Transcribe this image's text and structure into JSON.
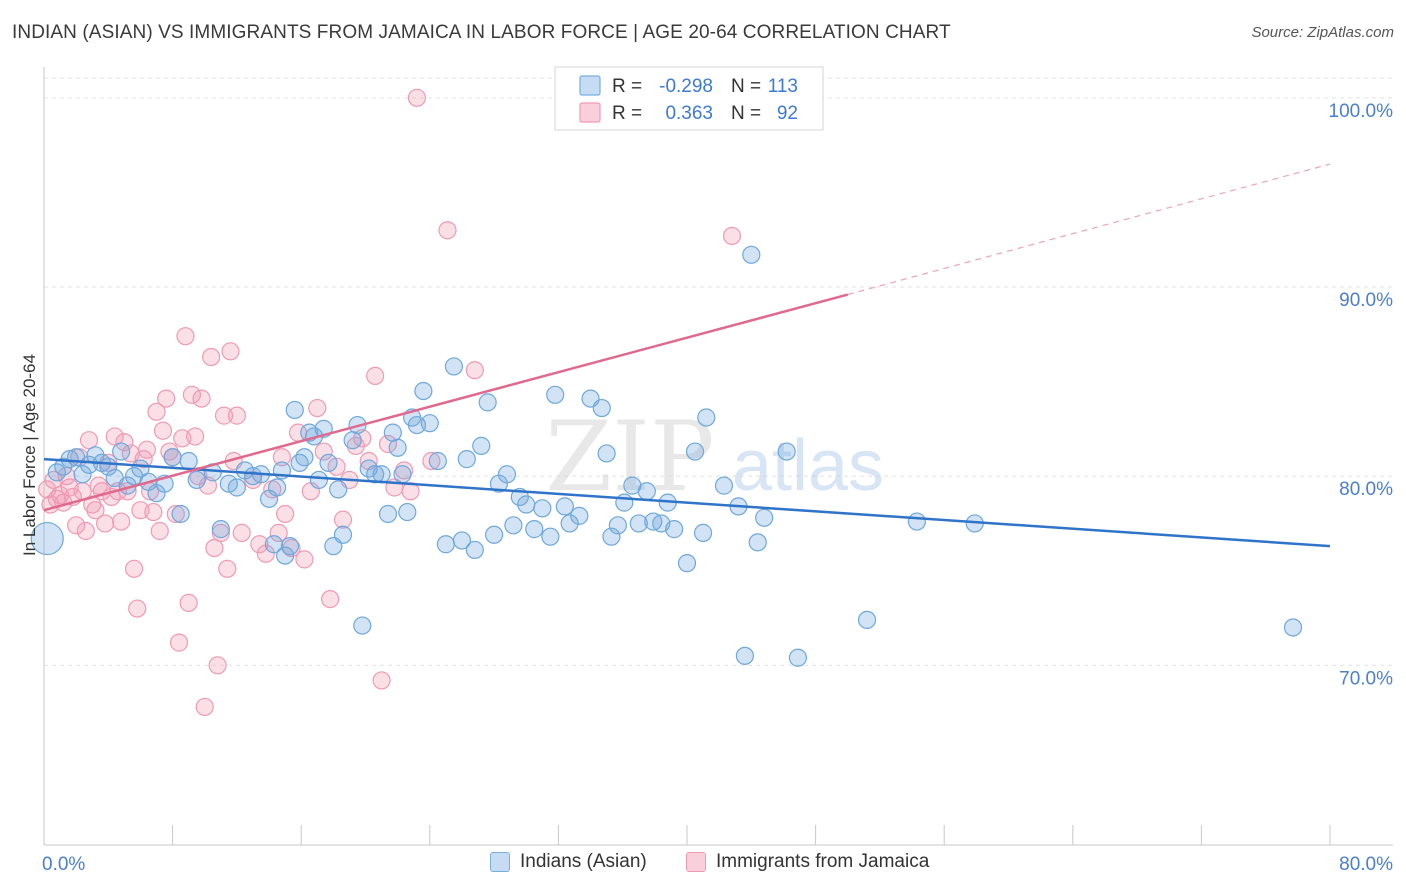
{
  "header": {
    "title": "INDIAN (ASIAN) VS IMMIGRANTS FROM JAMAICA IN LABOR FORCE | AGE 20-64 CORRELATION CHART",
    "source": "Source: ZipAtlas.com"
  },
  "watermark": {
    "zip": "ZIP",
    "atlas": "atlas"
  },
  "legend_top": [
    {
      "r_label": "R =",
      "r_value": "-0.298",
      "n_label": "N =",
      "n_value": "113"
    },
    {
      "r_label": "R =",
      "r_value": "0.363",
      "n_label": "N =",
      "n_value": "92"
    }
  ],
  "chart_data": {
    "type": "scatter",
    "title": "INDIAN (ASIAN) VS IMMIGRANTS FROM JAMAICA IN LABOR FORCE | AGE 20-64 CORRELATION CHART",
    "xlabel": "",
    "ylabel": "In Labor Force | Age 20-64",
    "xlim": [
      0,
      80
    ],
    "ylim": [
      60.5,
      102
    ],
    "x_tick_labels": [
      "0.0%",
      "80.0%"
    ],
    "y_ticks": [
      70,
      80,
      90,
      100
    ],
    "y_tick_labels": [
      "70.0%",
      "80.0%",
      "90.0%",
      "100.0%"
    ],
    "grid": true,
    "legend_position": "top-center",
    "colors": {
      "blue": "#6fa8dc",
      "blue_line": "#2f74c9",
      "pink": "#f09ab4",
      "pink_line": "#e0698f",
      "tick_text": "#4a7fcf"
    },
    "series": [
      {
        "name": "Indians (Asian)",
        "color": "#6fa8dc",
        "trend": {
          "x0": 0,
          "y0": 80.9,
          "x1": 80,
          "y1": 76.3
        },
        "points": [
          [
            0.2,
            76.7
          ],
          [
            0.8,
            80.2
          ],
          [
            1.2,
            80.5
          ],
          [
            1.6,
            80.9
          ],
          [
            2.0,
            81.0
          ],
          [
            2.4,
            80.1
          ],
          [
            2.8,
            80.6
          ],
          [
            3.2,
            81.1
          ],
          [
            3.6,
            80.7
          ],
          [
            4.0,
            80.5
          ],
          [
            4.4,
            79.9
          ],
          [
            4.8,
            81.3
          ],
          [
            5.2,
            79.5
          ],
          [
            5.6,
            80.0
          ],
          [
            6.0,
            80.4
          ],
          [
            6.5,
            79.7
          ],
          [
            7.0,
            79.1
          ],
          [
            7.5,
            79.6
          ],
          [
            8.0,
            81.0
          ],
          [
            8.5,
            78.0
          ],
          [
            9.0,
            80.8
          ],
          [
            9.5,
            79.8
          ],
          [
            10.5,
            80.2
          ],
          [
            11.0,
            77.2
          ],
          [
            11.5,
            79.6
          ],
          [
            12.0,
            79.4
          ],
          [
            12.5,
            80.3
          ],
          [
            13.0,
            80.0
          ],
          [
            13.5,
            80.1
          ],
          [
            14.0,
            78.8
          ],
          [
            14.3,
            76.4
          ],
          [
            14.5,
            79.4
          ],
          [
            14.8,
            80.3
          ],
          [
            15.0,
            75.8
          ],
          [
            15.3,
            76.3
          ],
          [
            15.6,
            83.5
          ],
          [
            15.9,
            80.7
          ],
          [
            16.2,
            81.0
          ],
          [
            16.5,
            82.3
          ],
          [
            16.8,
            82.1
          ],
          [
            17.1,
            79.8
          ],
          [
            17.4,
            82.5
          ],
          [
            17.7,
            80.7
          ],
          [
            18.0,
            76.3
          ],
          [
            18.3,
            79.3
          ],
          [
            18.6,
            76.9
          ],
          [
            19.2,
            81.9
          ],
          [
            19.5,
            82.7
          ],
          [
            19.8,
            72.1
          ],
          [
            20.2,
            80.4
          ],
          [
            20.6,
            80.1
          ],
          [
            21.0,
            80.1
          ],
          [
            21.4,
            78.0
          ],
          [
            21.7,
            82.3
          ],
          [
            22.0,
            81.5
          ],
          [
            22.3,
            80.1
          ],
          [
            22.6,
            78.1
          ],
          [
            22.9,
            83.1
          ],
          [
            23.2,
            82.7
          ],
          [
            23.6,
            84.5
          ],
          [
            24.0,
            82.8
          ],
          [
            24.5,
            80.8
          ],
          [
            25.0,
            76.4
          ],
          [
            25.5,
            85.8
          ],
          [
            26.0,
            76.6
          ],
          [
            26.3,
            80.9
          ],
          [
            26.8,
            76.1
          ],
          [
            27.2,
            81.6
          ],
          [
            27.6,
            83.9
          ],
          [
            28.0,
            76.9
          ],
          [
            28.3,
            79.6
          ],
          [
            28.8,
            80.1
          ],
          [
            29.2,
            77.4
          ],
          [
            29.6,
            78.9
          ],
          [
            30.0,
            78.5
          ],
          [
            30.5,
            77.2
          ],
          [
            31.0,
            78.3
          ],
          [
            31.5,
            76.8
          ],
          [
            31.8,
            84.3
          ],
          [
            32.4,
            78.4
          ],
          [
            32.7,
            77.5
          ],
          [
            33.3,
            77.9
          ],
          [
            34.0,
            84.1
          ],
          [
            34.7,
            83.6
          ],
          [
            35.0,
            81.2
          ],
          [
            35.3,
            76.8
          ],
          [
            35.7,
            77.4
          ],
          [
            36.1,
            78.6
          ],
          [
            36.6,
            79.5
          ],
          [
            37.0,
            77.5
          ],
          [
            37.5,
            79.2
          ],
          [
            37.9,
            77.6
          ],
          [
            38.4,
            77.5
          ],
          [
            38.8,
            78.6
          ],
          [
            39.2,
            77.2
          ],
          [
            40.0,
            75.4
          ],
          [
            40.5,
            81.3
          ],
          [
            41.0,
            77.0
          ],
          [
            41.2,
            83.1
          ],
          [
            42.3,
            79.5
          ],
          [
            43.2,
            78.4
          ],
          [
            43.6,
            70.5
          ],
          [
            44.0,
            91.7
          ],
          [
            44.4,
            76.5
          ],
          [
            44.8,
            77.8
          ],
          [
            46.2,
            81.3
          ],
          [
            46.9,
            70.4
          ],
          [
            51.2,
            72.4
          ],
          [
            54.3,
            77.6
          ],
          [
            57.9,
            77.5
          ],
          [
            77.7,
            72.0
          ]
        ]
      },
      {
        "name": "Immigrants from Jamaica",
        "color": "#f09ab4",
        "trend": {
          "x0": 0,
          "y0": 78.2,
          "x1": 50,
          "y1": 89.6
        },
        "trend_dashed": {
          "x0": 50,
          "y0": 89.6,
          "x1": 80,
          "y1": 96.5
        },
        "points": [
          [
            0.2,
            79.3
          ],
          [
            0.4,
            78.5
          ],
          [
            0.6,
            79.8
          ],
          [
            0.8,
            78.8
          ],
          [
            1.0,
            79.0
          ],
          [
            1.2,
            78.6
          ],
          [
            1.4,
            80.0
          ],
          [
            1.6,
            79.4
          ],
          [
            1.8,
            78.9
          ],
          [
            2.0,
            77.4
          ],
          [
            2.2,
            81.0
          ],
          [
            2.4,
            79.2
          ],
          [
            2.6,
            77.1
          ],
          [
            2.8,
            81.9
          ],
          [
            3.0,
            78.5
          ],
          [
            3.2,
            78.2
          ],
          [
            3.4,
            79.5
          ],
          [
            3.6,
            79.2
          ],
          [
            3.8,
            77.5
          ],
          [
            4.0,
            80.7
          ],
          [
            4.2,
            78.9
          ],
          [
            4.4,
            82.1
          ],
          [
            4.6,
            79.2
          ],
          [
            4.8,
            77.6
          ],
          [
            5.0,
            81.8
          ],
          [
            5.2,
            79.2
          ],
          [
            5.4,
            81.2
          ],
          [
            5.6,
            75.1
          ],
          [
            5.8,
            73.0
          ],
          [
            6.0,
            78.2
          ],
          [
            6.2,
            80.9
          ],
          [
            6.4,
            81.4
          ],
          [
            6.6,
            79.2
          ],
          [
            6.8,
            78.1
          ],
          [
            7.0,
            83.4
          ],
          [
            7.2,
            77.1
          ],
          [
            7.4,
            82.4
          ],
          [
            7.6,
            84.1
          ],
          [
            7.8,
            81.3
          ],
          [
            8.0,
            81.0
          ],
          [
            8.2,
            78.0
          ],
          [
            8.4,
            71.2
          ],
          [
            8.6,
            82.0
          ],
          [
            8.8,
            87.4
          ],
          [
            9.0,
            73.3
          ],
          [
            9.2,
            84.3
          ],
          [
            9.4,
            82.1
          ],
          [
            9.6,
            80.0
          ],
          [
            9.8,
            84.1
          ],
          [
            10.0,
            67.8
          ],
          [
            10.2,
            79.5
          ],
          [
            10.4,
            86.3
          ],
          [
            10.6,
            76.2
          ],
          [
            10.8,
            70.0
          ],
          [
            11.0,
            77.0
          ],
          [
            11.2,
            83.2
          ],
          [
            11.4,
            75.1
          ],
          [
            11.6,
            86.6
          ],
          [
            11.8,
            80.8
          ],
          [
            12.0,
            83.2
          ],
          [
            12.3,
            77.0
          ],
          [
            13.0,
            79.8
          ],
          [
            13.4,
            76.4
          ],
          [
            13.8,
            75.9
          ],
          [
            14.2,
            79.3
          ],
          [
            14.6,
            77.0
          ],
          [
            14.8,
            81.0
          ],
          [
            15.0,
            78.0
          ],
          [
            15.4,
            76.2
          ],
          [
            15.8,
            82.3
          ],
          [
            16.2,
            75.6
          ],
          [
            16.6,
            79.2
          ],
          [
            17.0,
            83.6
          ],
          [
            17.4,
            81.3
          ],
          [
            17.8,
            73.5
          ],
          [
            18.2,
            80.5
          ],
          [
            18.6,
            77.7
          ],
          [
            19.0,
            79.8
          ],
          [
            19.4,
            81.6
          ],
          [
            19.8,
            82.0
          ],
          [
            20.2,
            80.8
          ],
          [
            20.6,
            85.3
          ],
          [
            21.0,
            69.2
          ],
          [
            21.4,
            81.7
          ],
          [
            21.8,
            79.4
          ],
          [
            22.4,
            80.3
          ],
          [
            22.8,
            79.2
          ],
          [
            23.2,
            100.0
          ],
          [
            24.1,
            80.8
          ],
          [
            25.1,
            93.0
          ],
          [
            26.8,
            85.6
          ],
          [
            42.8,
            92.7
          ]
        ]
      }
    ]
  },
  "legend_bottom": [
    {
      "label": "Indians (Asian)",
      "color": "#6fa8dc"
    },
    {
      "label": "Immigrants from Jamaica",
      "color": "#f09ab4"
    }
  ]
}
